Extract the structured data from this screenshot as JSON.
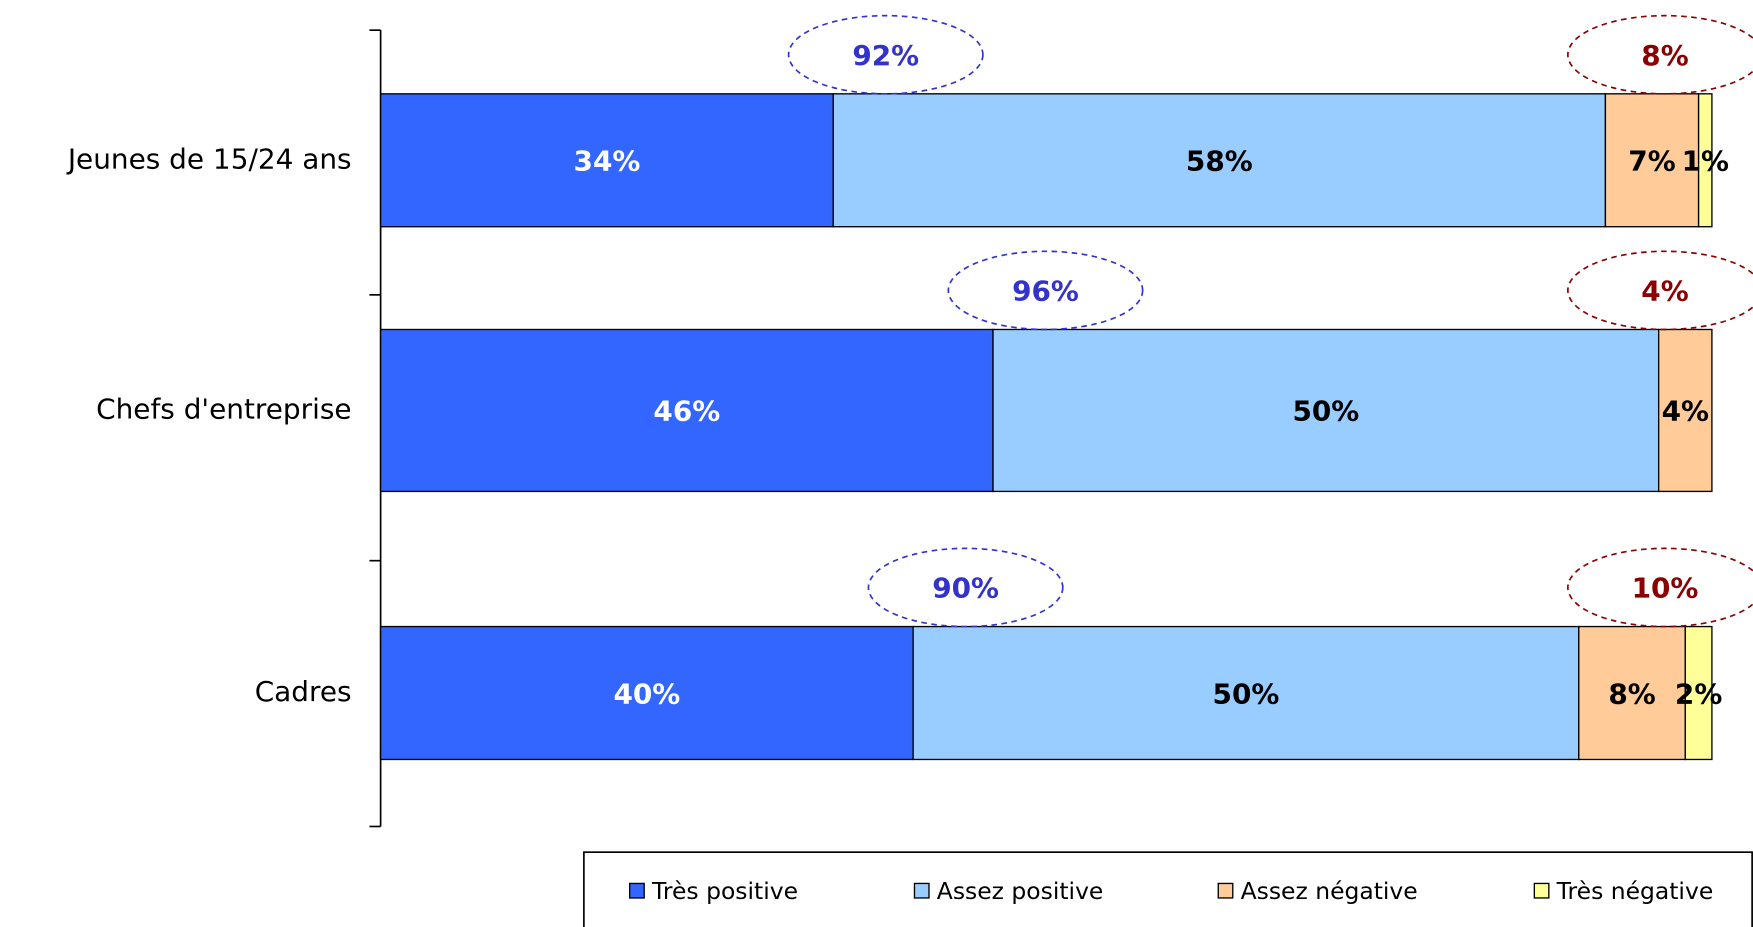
{
  "chart_data": {
    "type": "stacked-bar-horizontal",
    "categories": [
      "Jeunes de 15/24 ans",
      "Chefs d'entreprise",
      "Cadres"
    ],
    "xlim": [
      0,
      100
    ],
    "series": [
      {
        "name": "Très positive",
        "color": "#3366ff",
        "label_color": "#ffffff",
        "values": [
          34,
          46,
          40
        ],
        "value_labels": [
          "34%",
          "46%",
          "40%"
        ]
      },
      {
        "name": "Assez positive",
        "color": "#99ccff",
        "label_color": "#000000",
        "values": [
          58,
          50,
          50
        ],
        "value_labels": [
          "58%",
          "50%",
          "50%"
        ]
      },
      {
        "name": "Assez négative",
        "color": "#ffcc99",
        "label_color": "#000000",
        "values": [
          7,
          4,
          8
        ],
        "value_labels": [
          "7%",
          "4%",
          "8%"
        ]
      },
      {
        "name": "Très négative",
        "color": "#ffff99",
        "label_color": "#000000",
        "values": [
          1,
          null,
          2
        ],
        "value_labels": [
          "1%",
          null,
          "2%"
        ]
      }
    ],
    "positive_totals": {
      "color": "#3333cc",
      "values": [
        {
          "value": 92,
          "label": "92%"
        },
        {
          "value": 96,
          "label": "96%"
        },
        {
          "value": 90,
          "label": "90%"
        }
      ]
    },
    "negative_totals": {
      "color": "#8b0000",
      "values": [
        {
          "value": 8,
          "label": "8%"
        },
        {
          "value": 4,
          "label": "4%"
        },
        {
          "value": 10,
          "label": "10%"
        }
      ]
    },
    "legend": "bottom-right"
  }
}
